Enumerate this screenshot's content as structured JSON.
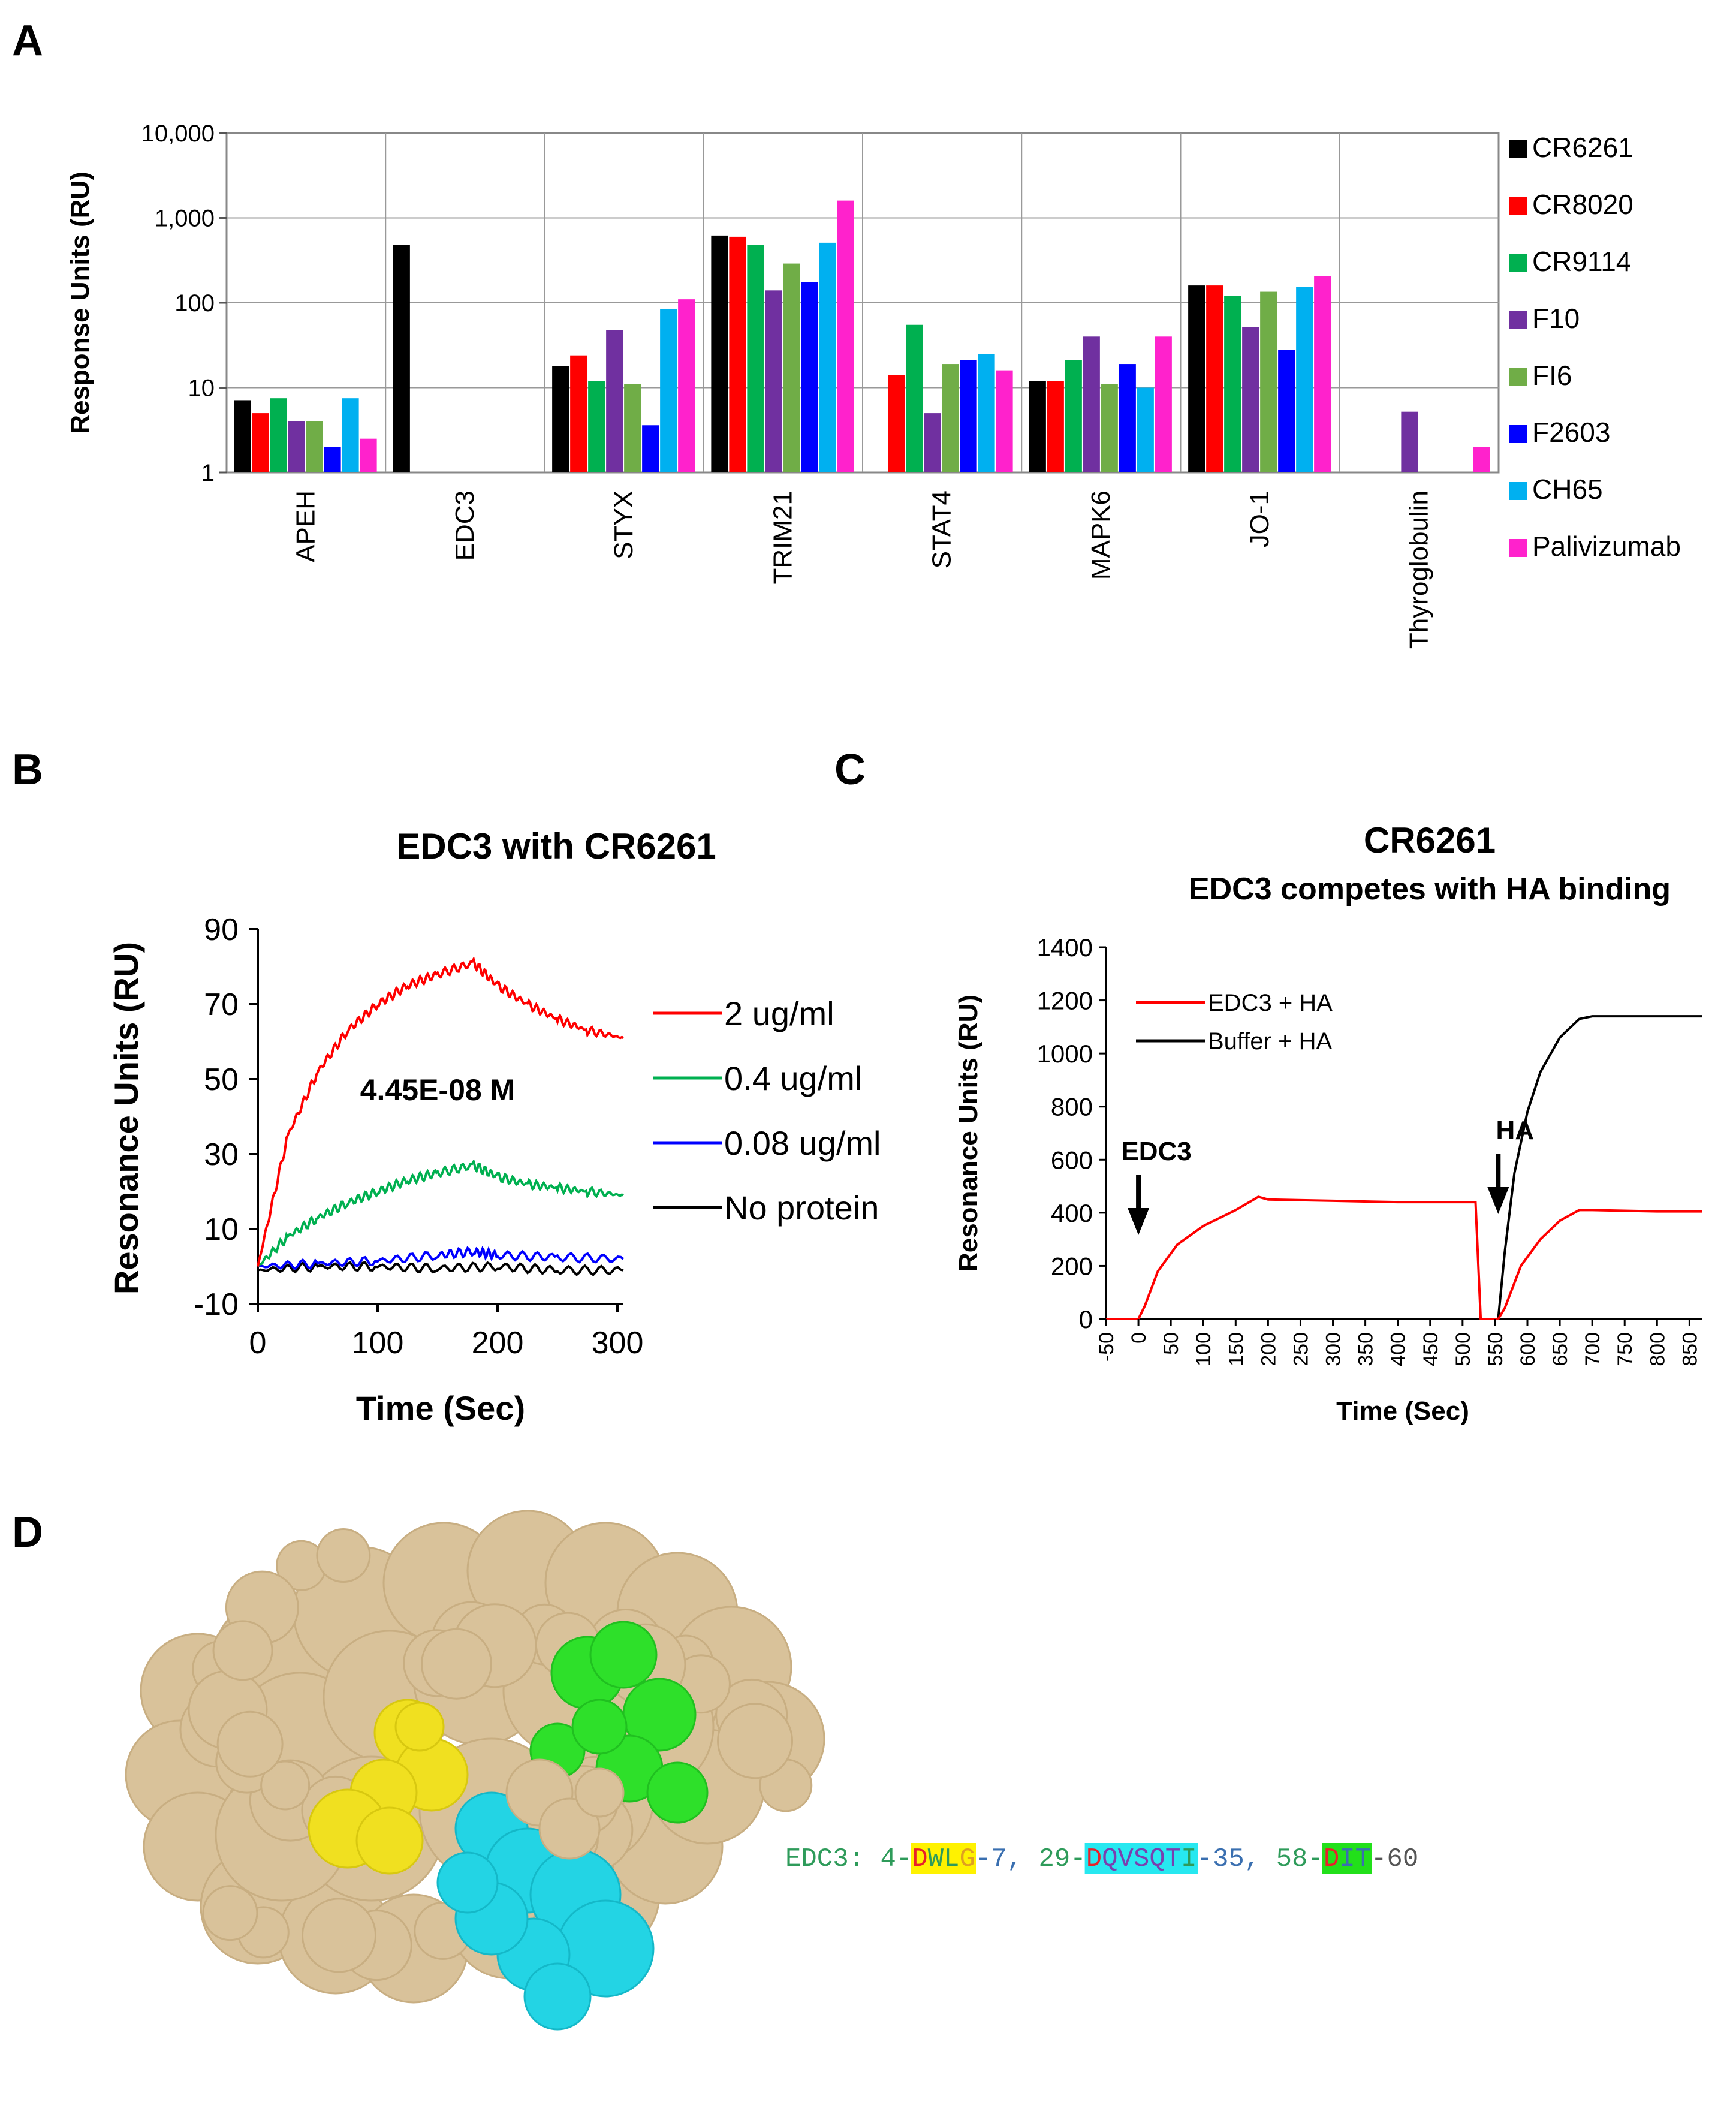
{
  "panels": {
    "a": {
      "letter": "A"
    },
    "b": {
      "letter": "B",
      "title": "EDC3 with CR6261",
      "annotation": "4.45E-08 M"
    },
    "c": {
      "letter": "C",
      "title": "CR6261",
      "subtitle": "EDC3 competes with HA binding",
      "arrow_labels": [
        "EDC3",
        "HA"
      ]
    },
    "d": {
      "letter": "D",
      "sequence": {
        "prefix": "EDC3: ",
        "parts": [
          {
            "text": "4-",
            "color": "#2e9b5a",
            "bg": null
          },
          {
            "text": "D",
            "color": "#e8212a",
            "bg": "#fff200"
          },
          {
            "text": "WL",
            "color": "#2e9b5a",
            "bg": "#fff200"
          },
          {
            "text": "G",
            "color": "#e0a020",
            "bg": "#fff200"
          },
          {
            "text": "-7, ",
            "color": "#3a6fb0",
            "bg": null
          },
          {
            "text": "29-",
            "color": "#2e9b5a",
            "bg": null
          },
          {
            "text": "D",
            "color": "#e8212a",
            "bg": "#27e8f0"
          },
          {
            "text": "QVSQT",
            "color": "#7a3fb0",
            "bg": "#27e8f0"
          },
          {
            "text": "I",
            "color": "#2e9b5a",
            "bg": "#27e8f0"
          },
          {
            "text": "-35, ",
            "color": "#3a6fb0",
            "bg": null
          },
          {
            "text": "58-",
            "color": "#2e9b5a",
            "bg": null
          },
          {
            "text": "D",
            "color": "#e8212a",
            "bg": "#22e01a"
          },
          {
            "text": "IT",
            "color": "#3a6fb0",
            "bg": "#22e01a"
          },
          {
            "text": "-60",
            "color": "#555555",
            "bg": null
          }
        ]
      },
      "surface_colors": {
        "base": "#d9c29a",
        "yellow": "#f0e020",
        "cyan": "#23d4e4",
        "green": "#2ee02a"
      }
    }
  },
  "chart_data": [
    {
      "id": "A",
      "type": "bar",
      "title": "",
      "ylabel": "Response Units (RU)",
      "xlabel": "",
      "yscale": "log",
      "ylim": [
        1,
        10000
      ],
      "yticks": [
        "1",
        "10",
        "100",
        "1,000",
        "10,000"
      ],
      "ytick_values": [
        1,
        10,
        100,
        1000,
        10000
      ],
      "categories": [
        "APEH",
        "EDC3",
        "STYX",
        "TRIM21",
        "STAT4",
        "MAPK6",
        "JO-1",
        "Thyroglobulin"
      ],
      "series": [
        {
          "name": "CR6261",
          "color": "#000000",
          "values": [
            7,
            480,
            18,
            620,
            null,
            12,
            160,
            null
          ]
        },
        {
          "name": "CR8020",
          "color": "#ff0000",
          "values": [
            5,
            null,
            24,
            600,
            14,
            12,
            160,
            null
          ]
        },
        {
          "name": "CR9114",
          "color": "#00b050",
          "values": [
            7.5,
            null,
            12,
            480,
            55,
            21,
            120,
            null
          ]
        },
        {
          "name": "F10",
          "color": "#7030a0",
          "values": [
            4,
            null,
            48,
            140,
            5,
            40,
            52,
            5.2
          ]
        },
        {
          "name": "FI6",
          "color": "#70ad47",
          "values": [
            4,
            null,
            11,
            290,
            19,
            11,
            135,
            null
          ]
        },
        {
          "name": "F2603",
          "color": "#0000ff",
          "values": [
            2,
            null,
            3.6,
            175,
            21,
            19,
            28,
            null
          ]
        },
        {
          "name": "CH65",
          "color": "#00b0f0",
          "values": [
            7.5,
            null,
            85,
            510,
            25,
            10,
            155,
            null
          ]
        },
        {
          "name": "Palivizumab",
          "color": "#ff22cc",
          "values": [
            2.5,
            null,
            110,
            1600,
            16,
            40,
            205,
            2
          ]
        }
      ],
      "legend": "right",
      "grid": true
    },
    {
      "id": "B",
      "type": "line",
      "title": "EDC3 with CR6261",
      "xlabel": "Time (Sec)",
      "ylabel": "Resonance Units (RU)",
      "xlim": [
        0,
        305
      ],
      "ylim": [
        -10,
        90
      ],
      "xticks": [
        0,
        100,
        200,
        300
      ],
      "yticks": [
        -10,
        10,
        30,
        50,
        70,
        90
      ],
      "series": [
        {
          "name": "2 ug/ml",
          "color": "#ff0000",
          "x": [
            0,
            25,
            50,
            75,
            100,
            125,
            150,
            180,
            200,
            225,
            250,
            275,
            305
          ],
          "y": [
            0,
            35,
            52,
            63,
            70,
            75,
            78,
            81,
            75,
            70,
            66,
            63,
            61
          ]
        },
        {
          "name": "0.4 ug/ml",
          "color": "#00b050",
          "x": [
            0,
            25,
            50,
            75,
            100,
            125,
            150,
            180,
            200,
            225,
            250,
            275,
            305
          ],
          "y": [
            0,
            8,
            13,
            17,
            20,
            23,
            25,
            27,
            24,
            22,
            21,
            20,
            19
          ]
        },
        {
          "name": "0.08 ug/ml",
          "color": "#0000ff",
          "x": [
            0,
            50,
            100,
            150,
            180,
            200,
            250,
            305
          ],
          "y": [
            0,
            0.8,
            1.5,
            3,
            4,
            3,
            2.5,
            2
          ]
        },
        {
          "name": "No protein",
          "color": "#000000",
          "x": [
            0,
            50,
            100,
            150,
            200,
            250,
            305
          ],
          "y": [
            -1,
            0,
            0,
            -0.5,
            0,
            -1,
            -1
          ]
        }
      ],
      "legend": "right"
    },
    {
      "id": "C",
      "type": "line",
      "title": "CR6261",
      "subtitle": "EDC3 competes with HA binding",
      "xlabel": "Time (Sec)",
      "ylabel": "Resonance Units (RU)",
      "xlim": [
        -50,
        870
      ],
      "ylim": [
        0,
        1400
      ],
      "xticks": [
        -50,
        0,
        50,
        100,
        150,
        200,
        250,
        300,
        350,
        400,
        450,
        500,
        550,
        600,
        650,
        700,
        750,
        800,
        850
      ],
      "yticks": [
        0,
        200,
        400,
        600,
        800,
        1000,
        1200,
        1400
      ],
      "series": [
        {
          "name": "EDC3 + HA",
          "color": "#ff0000",
          "x": [
            -50,
            0,
            10,
            30,
            60,
            100,
            150,
            185,
            200,
            300,
            400,
            520,
            528,
            532,
            555,
            565,
            590,
            620,
            650,
            680,
            700,
            800,
            870
          ],
          "y": [
            0,
            0,
            50,
            180,
            280,
            350,
            410,
            460,
            450,
            445,
            440,
            440,
            0,
            0,
            0,
            40,
            200,
            300,
            370,
            410,
            410,
            405,
            405
          ]
        },
        {
          "name": "Buffer + HA",
          "color": "#000000",
          "x": [
            555,
            565,
            580,
            600,
            620,
            650,
            680,
            700,
            800,
            870
          ],
          "y": [
            0,
            250,
            550,
            780,
            930,
            1060,
            1130,
            1140,
            1140,
            1140
          ]
        }
      ],
      "annotations": [
        {
          "label": "EDC3",
          "x": 0
        },
        {
          "label": "HA",
          "x": 555
        }
      ],
      "legend": "top-left"
    }
  ]
}
